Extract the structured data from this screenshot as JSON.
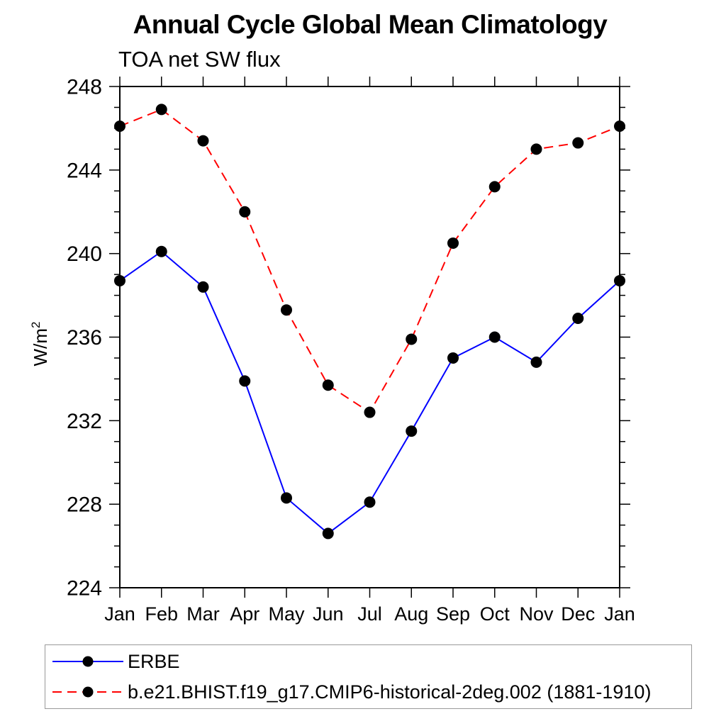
{
  "page": {
    "title": "Annual Cycle Global Mean Climatology",
    "subtitle": "TOA net SW flux"
  },
  "chart_data": {
    "type": "line",
    "title": "Annual Cycle Global Mean Climatology",
    "subtitle": "TOA net SW flux",
    "xlabel": "",
    "ylabel": "W/m2",
    "ylabel_base": "W/m",
    "ylabel_exponent": "2",
    "x_categories": [
      "Jan",
      "Feb",
      "Mar",
      "Apr",
      "May",
      "Jun",
      "Jul",
      "Aug",
      "Sep",
      "Oct",
      "Nov",
      "Dec",
      "Jan"
    ],
    "ylim": [
      224,
      248
    ],
    "ytick_major_interval": 4,
    "ytick_minor_interval": 1,
    "ytick_labels": [
      "224",
      "228",
      "232",
      "236",
      "240",
      "244",
      "248"
    ],
    "grid": false,
    "legend_position": "bottom",
    "marker_color": "#000000",
    "frame_color": "#000000",
    "series": [
      {
        "name": "ERBE",
        "color": "#0000ff",
        "line_style": "solid",
        "marker": "circle",
        "marker_color": "#000000",
        "values": [
          238.7,
          240.1,
          238.4,
          233.9,
          228.3,
          226.6,
          228.1,
          231.5,
          235.0,
          236.0,
          234.8,
          236.9,
          238.7
        ]
      },
      {
        "name": "b.e21.BHIST.f19_g17.CMIP6-historical-2deg.002 (1881-1910)",
        "color": "#ff0000",
        "line_style": "dashed",
        "marker": "circle",
        "marker_color": "#000000",
        "values": [
          246.1,
          246.9,
          245.4,
          242.0,
          237.3,
          233.7,
          232.4,
          235.9,
          240.5,
          243.2,
          245.0,
          245.3,
          246.1
        ]
      }
    ]
  }
}
